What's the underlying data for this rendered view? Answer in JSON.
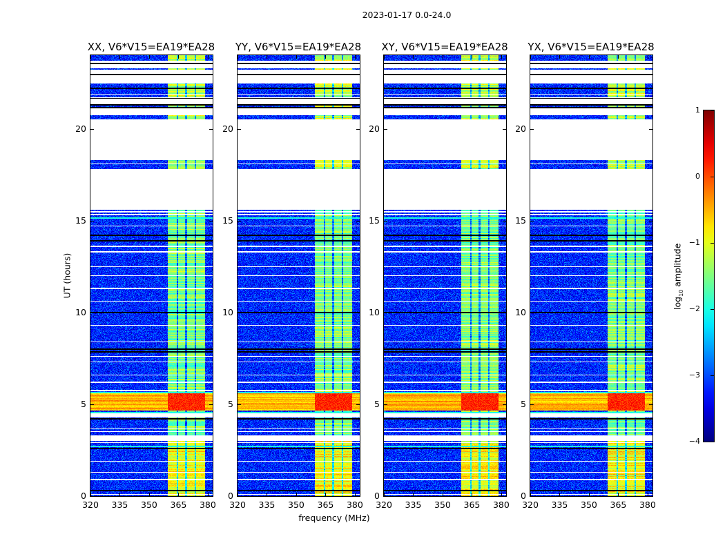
{
  "chart_data": {
    "type": "heatmap",
    "title": "2023-01-17 0.0-24.0",
    "xlabel": "frequency (MHz)",
    "ylabel": "UT (hours)",
    "xlim": [
      320,
      382.5
    ],
    "ylim": [
      0,
      24
    ],
    "xticks": [
      320,
      335,
      350,
      365,
      380
    ],
    "yticks": [
      0,
      5,
      10,
      15,
      20
    ],
    "panels": [
      {
        "title": "XX, V6*V15=EA19*EA28",
        "seed": 11
      },
      {
        "title": "YY, V6*V15=EA19*EA28",
        "seed": 23
      },
      {
        "title": "XY, V6*V15=EA19*EA28",
        "seed": 37
      },
      {
        "title": "YX, V6*V15=EA19*EA28",
        "seed": 51
      }
    ],
    "colorbar": {
      "label": "log10 amplitude",
      "label_base": "log",
      "label_sub": "10",
      "label_rest": " amplitude",
      "colormap": "jet",
      "range": [
        -4,
        1
      ],
      "ticks": [
        -4,
        -3,
        -2,
        -1,
        0,
        1
      ],
      "tick_labels": [
        "−4",
        "−3",
        "−2",
        "−1",
        "0",
        "1"
      ]
    },
    "model": {
      "baseline_log_amp": -3.2,
      "noise_sigma": 0.35,
      "rfi_band_mhz": [
        359.6,
        378.7
      ],
      "rfi_notches_mhz": [
        364.5,
        369.0,
        373.7
      ],
      "rfi_levels": [
        {
          "hours": [
            0,
            3.0
          ],
          "value": -0.9
        },
        {
          "hours": [
            3.0,
            15.7
          ],
          "value": -1.5
        },
        {
          "hours": [
            15.7,
            24
          ],
          "value": -1.2
        }
      ],
      "hot_band_hours": [
        4.65,
        5.6
      ],
      "hot_band_value_low": -0.5,
      "hot_band_value_rfi": 0.2,
      "cyan_lines_hours": [
        2.7,
        4.55,
        5.65,
        15.15
      ],
      "data_segments_hours": [
        [
          0,
          15.0
        ],
        [
          15.0,
          15.6
        ],
        [
          17.8,
          18.3
        ],
        [
          20.5,
          20.75
        ],
        [
          21.2,
          21.35
        ],
        [
          21.7,
          21.85
        ],
        [
          21.9,
          22.15
        ],
        [
          22.2,
          22.45
        ],
        [
          23.2,
          23.3
        ],
        [
          23.7,
          24.0
        ]
      ],
      "gaps_hours": [
        [
          4.3,
          4.5
        ],
        [
          3.0,
          3.3
        ],
        [
          15.3,
          15.35
        ],
        [
          15.45,
          15.5
        ],
        [
          18.05,
          18.1
        ]
      ],
      "white_lines_hours": [
        0.1,
        0.9,
        1.3,
        1.9,
        2.9,
        3.5,
        3.7,
        5.75,
        6.2,
        6.6,
        7.3,
        7.6,
        8.4,
        9.3,
        10.6,
        11.3,
        12.0,
        12.5,
        13.3,
        13.6,
        14.7
      ],
      "flag_lines_hours": [
        0.3,
        2.6,
        4.2,
        7.85,
        8.0,
        10.0,
        13.9,
        14.2,
        21.15,
        21.3,
        21.65,
        22.2,
        22.95,
        23.55
      ]
    }
  }
}
